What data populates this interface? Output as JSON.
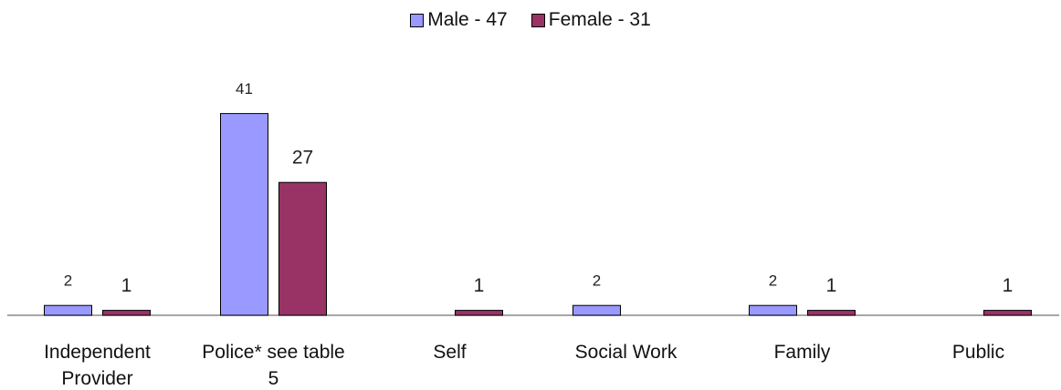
{
  "chart_data": {
    "type": "bar",
    "categories": [
      "Independent Provider",
      "Police* see table 5",
      "Self",
      "Social Work",
      "Family",
      "Public"
    ],
    "series": [
      {
        "name": "Male - 47",
        "color": "#9999ff",
        "values": [
          2,
          41,
          null,
          2,
          2,
          null
        ]
      },
      {
        "name": "Female - 31",
        "color": "#993366",
        "values": [
          1,
          27,
          1,
          null,
          1,
          1
        ]
      }
    ],
    "ylim": [
      0,
      50
    ],
    "legend": "top"
  }
}
